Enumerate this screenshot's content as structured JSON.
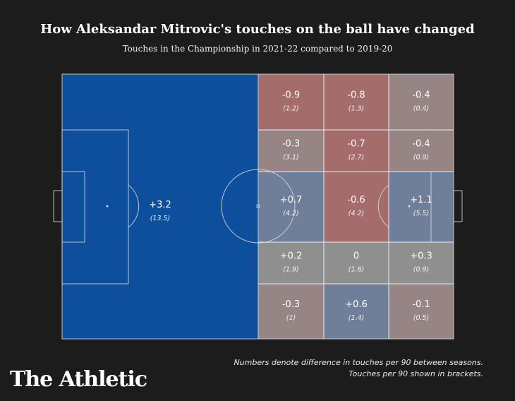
{
  "title": "How Aleksandar Mitrovic's touches on the ball have changed",
  "subtitle": "Touches in the Championship in 2021-22 compared to 2019-20",
  "note": {
    "line1": "Numbers denote difference in touches per 90 between seasons.",
    "line2": "Touches per 90 shown in brackets."
  },
  "brand": "The Athletic",
  "colors": {
    "positive_strong": "#0d4f9c",
    "positive_light": "#6f7f99",
    "negative_strong": "#a56c6c",
    "negative_light": "#978484",
    "neutral": "#8f8f8f",
    "pitch_line": "#d8d8d8"
  },
  "chart_data": {
    "type": "heatmap",
    "zones": [
      {
        "zone": "own-half",
        "diff": "+3.2",
        "per90": "(13.5)"
      },
      {
        "zone": "row1-col1",
        "diff": "-0.9",
        "per90": "(1.2)"
      },
      {
        "zone": "row1-col2",
        "diff": "-0.8",
        "per90": "(1.3)"
      },
      {
        "zone": "row1-col3",
        "diff": "-0.4",
        "per90": "(0.4)"
      },
      {
        "zone": "row2-col1",
        "diff": "-0.3",
        "per90": "(3.1)"
      },
      {
        "zone": "row2-col2",
        "diff": "-0.7",
        "per90": "(2.7)"
      },
      {
        "zone": "row2-col3",
        "diff": "-0.4",
        "per90": "(0.9)"
      },
      {
        "zone": "row3-col1",
        "diff": "+0.7",
        "per90": "(4.2)"
      },
      {
        "zone": "row3-col2",
        "diff": "-0.6",
        "per90": "(4.2)"
      },
      {
        "zone": "row3-col3",
        "diff": "+1.1",
        "per90": "(5.5)"
      },
      {
        "zone": "row4-col1",
        "diff": "+0.2",
        "per90": "(1.9)"
      },
      {
        "zone": "row4-col2",
        "diff": "0",
        "per90": "(1.6)"
      },
      {
        "zone": "row4-col3",
        "diff": "+0.3",
        "per90": "(0.9)"
      },
      {
        "zone": "row5-col1",
        "diff": "-0.3",
        "per90": "(1)"
      },
      {
        "zone": "row5-col2",
        "diff": "+0.6",
        "per90": "(1.4)"
      },
      {
        "zone": "row5-col3",
        "diff": "-0.1",
        "per90": "(0.5)"
      }
    ]
  }
}
